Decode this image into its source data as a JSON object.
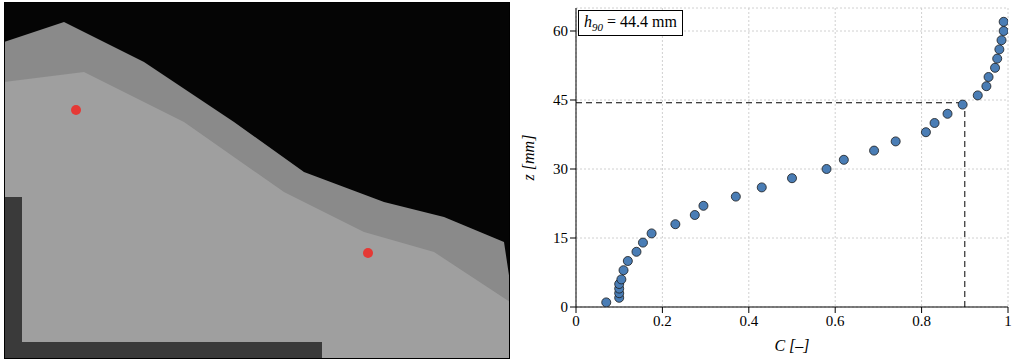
{
  "chart_data": {
    "type": "scatter",
    "x_label": "C [–]",
    "y_label": "z [mm]",
    "annotation": "h90 = 44.4 mm",
    "reference": {
      "x": 0.9,
      "y": 44.4
    },
    "xlim": [
      0,
      1
    ],
    "xticks": [
      0,
      0.2,
      0.4,
      0.6,
      0.8,
      1
    ],
    "ylim": [
      0,
      65
    ],
    "yticks": [
      0,
      15,
      30,
      45,
      60
    ],
    "grid": true,
    "marker": "circle",
    "color": "#4a7db5",
    "series": [
      {
        "name": "C",
        "x": [
          0.07,
          0.1,
          0.1,
          0.1,
          0.1,
          0.105,
          0.11,
          0.12,
          0.14,
          0.155,
          0.175,
          0.23,
          0.275,
          0.295,
          0.37,
          0.43,
          0.5,
          0.58,
          0.62,
          0.69,
          0.74,
          0.81,
          0.83,
          0.86,
          0.895,
          0.93,
          0.95,
          0.955,
          0.97,
          0.975,
          0.98,
          0.985,
          0.99,
          0.99
        ],
        "y": [
          1,
          2,
          3,
          4,
          5,
          6,
          8,
          10,
          12,
          14,
          16,
          18,
          20,
          22,
          24,
          26,
          28,
          30,
          32,
          34,
          36,
          38,
          40,
          42,
          44,
          46,
          48,
          50,
          52,
          54,
          56,
          58,
          60,
          62
        ]
      }
    ]
  }
}
